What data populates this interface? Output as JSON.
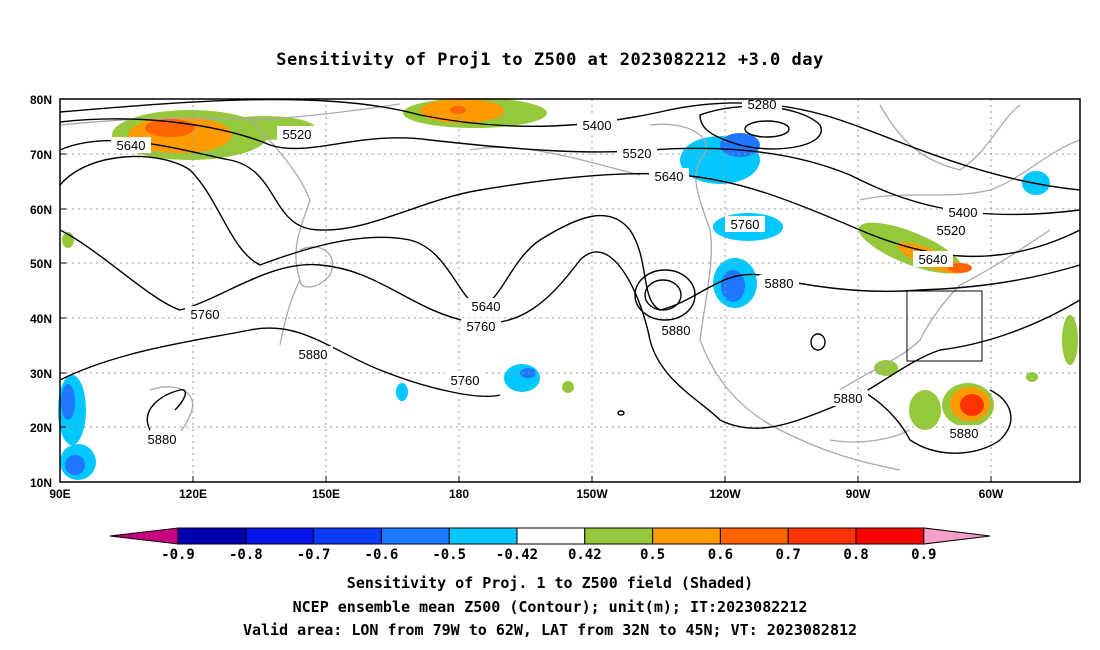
{
  "title": "Sensitivity of Proj1 to Z500 at 2023082212 +3.0 day",
  "map": {
    "lat_labels": [
      "80N",
      "70N",
      "60N",
      "50N",
      "40N",
      "30N",
      "20N",
      "10N"
    ],
    "lon_labels": [
      "90E",
      "120E",
      "150E",
      "180",
      "150W",
      "120W",
      "90W",
      "60W"
    ],
    "contour_labels": [
      "5280",
      "5400",
      "5520",
      "5640",
      "5520",
      "5640",
      "5400",
      "5520",
      "5640",
      "5760",
      "5880",
      "5760",
      "5640",
      "5760",
      "5880",
      "5880",
      "5760",
      "5880",
      "5880",
      "5880"
    ],
    "contour_color": "#000000",
    "coast_color": "#a9a9a9",
    "grid": "dotted",
    "valid_box_label": ""
  },
  "colorbar": {
    "labels": [
      "-0.9",
      "-0.8",
      "-0.7",
      "-0.6",
      "-0.5",
      "-0.42",
      "0.42",
      "0.5",
      "0.6",
      "0.7",
      "0.8",
      "0.9"
    ],
    "colors": [
      "#c8007f",
      "#0000b0",
      "#0014e6",
      "#0a3cff",
      "#1e78ff",
      "#00c8ff",
      "#ffffff",
      "#96c83c",
      "#ff9b00",
      "#ff6400",
      "#ff3200",
      "#ff0000",
      "#f5a0c8"
    ]
  },
  "caption": {
    "line1": "Sensitivity of Proj. 1 to Z500 field (Shaded)",
    "line2": "NCEP ensemble mean Z500 (Contour); unit(m); IT:2023082212",
    "line3": "Valid area: LON from 79W to 62W, LAT from 32N to 45N; VT: 2023082812"
  }
}
